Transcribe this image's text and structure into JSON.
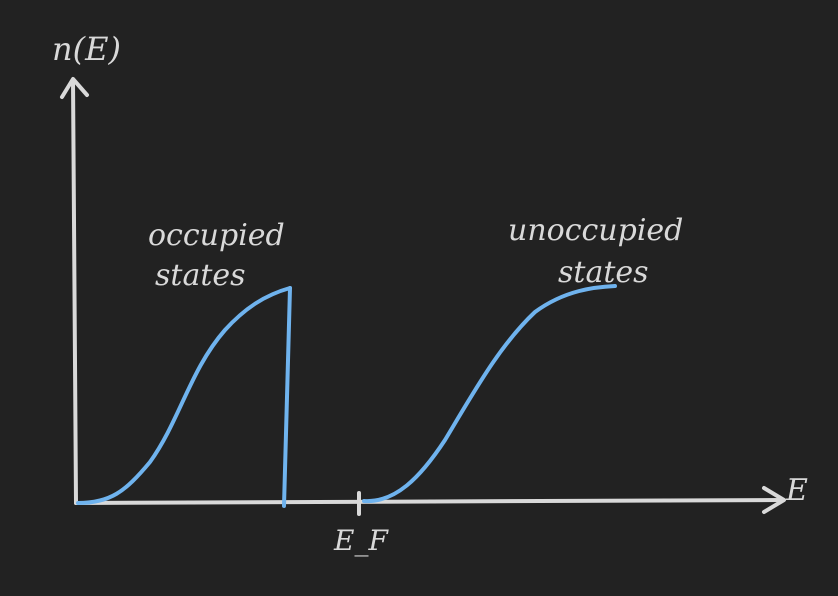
{
  "colors": {
    "background": "#222222",
    "axis": "#d9d9d9",
    "curve": "#6fb3ee"
  },
  "labels": {
    "y_axis": "n(E)",
    "x_axis": "E",
    "fermi_level": "E_F",
    "occupied_line1": "occupied",
    "occupied_line2": "states",
    "unoccupied_line1": "unoccupied",
    "unoccupied_line2": "states"
  }
}
